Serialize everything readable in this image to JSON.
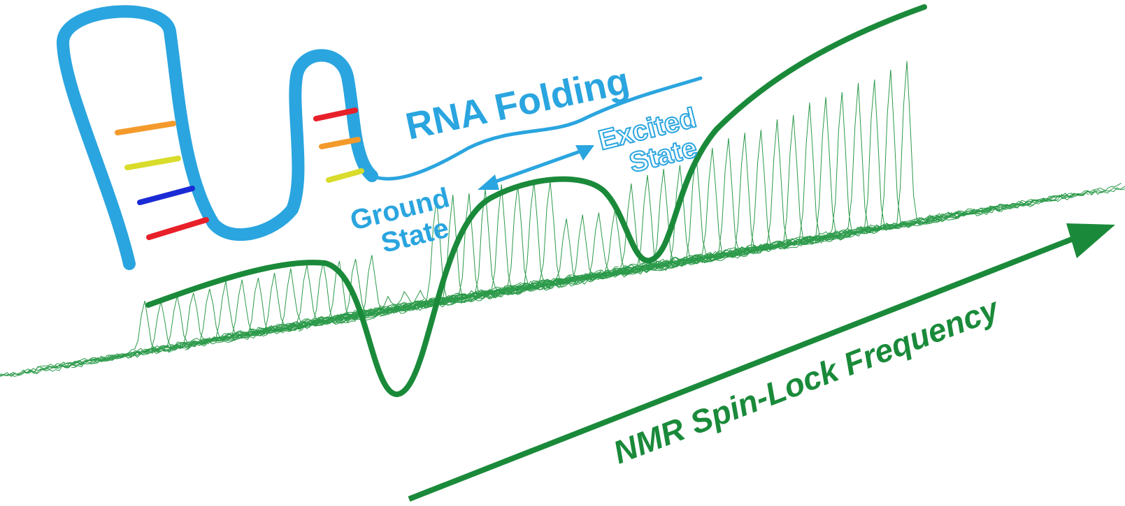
{
  "labels": {
    "title": "RNA Folding",
    "ground_state": [
      "Ground",
      "State"
    ],
    "excited_state": [
      "Excited",
      "State"
    ],
    "axis": "NMR Spin-Lock Frequency"
  }
}
